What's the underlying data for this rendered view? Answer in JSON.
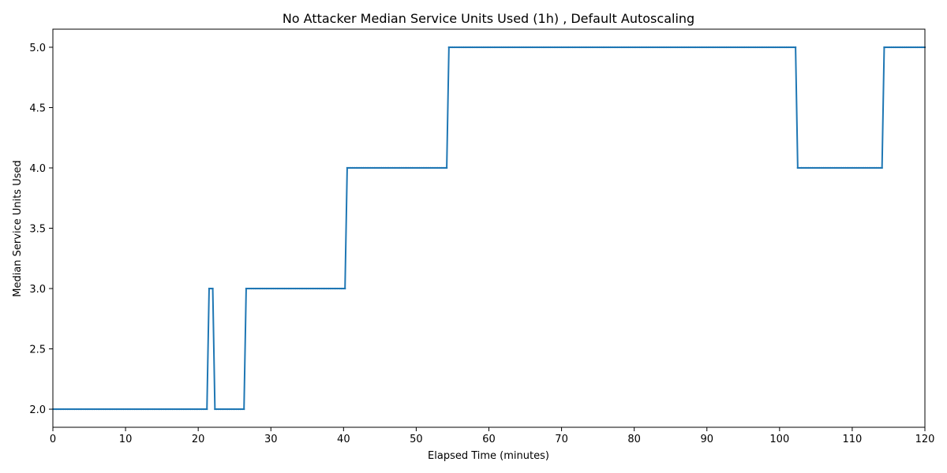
{
  "chart_data": {
    "type": "line",
    "title": "No Attacker Median Service Units Used (1h) , Default Autoscaling",
    "xlabel": "Elapsed Time (minutes)",
    "ylabel": "Median Service Units Used",
    "xlim": [
      0,
      120
    ],
    "ylim": [
      1.85,
      5.15
    ],
    "xticks": [
      0,
      10,
      20,
      30,
      40,
      50,
      60,
      70,
      80,
      90,
      100,
      110,
      120
    ],
    "yticks": [
      2.0,
      2.5,
      3.0,
      3.5,
      4.0,
      4.5,
      5.0
    ],
    "xtick_labels": [
      "0",
      "10",
      "20",
      "30",
      "40",
      "50",
      "60",
      "70",
      "80",
      "90",
      "100",
      "110",
      "120"
    ],
    "ytick_labels": [
      "2.0",
      "2.5",
      "3.0",
      "3.5",
      "4.0",
      "4.5",
      "5.0"
    ],
    "grid": false,
    "series": [
      {
        "color": "#1f77b4",
        "segments": [
          {
            "start": 0.0,
            "end": 21.2,
            "value": 2
          },
          {
            "start": 21.5,
            "end": 22.0,
            "value": 3
          },
          {
            "start": 22.3,
            "end": 26.3,
            "value": 2
          },
          {
            "start": 26.6,
            "end": 40.2,
            "value": 3
          },
          {
            "start": 40.5,
            "end": 54.2,
            "value": 4
          },
          {
            "start": 54.5,
            "end": 102.2,
            "value": 5
          },
          {
            "start": 102.5,
            "end": 114.1,
            "value": 4
          },
          {
            "start": 114.4,
            "end": 120.0,
            "value": 5
          }
        ]
      }
    ]
  }
}
